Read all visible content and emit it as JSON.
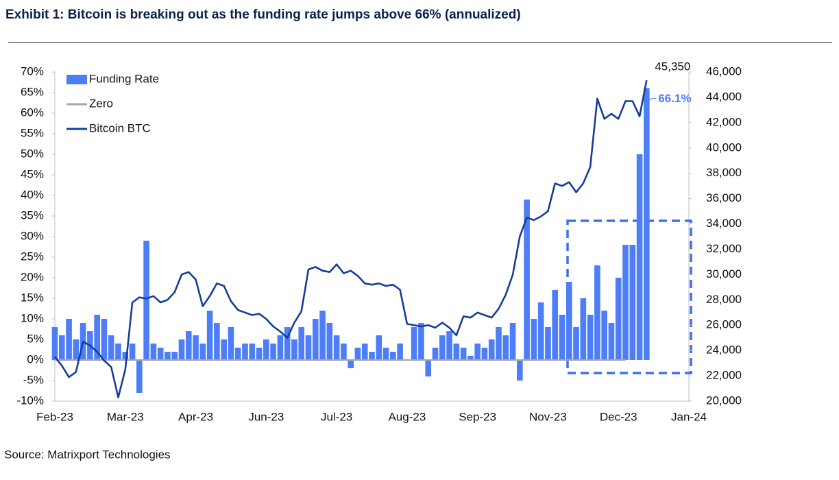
{
  "chart_data": {
    "type": "bar-line",
    "title": "Exhibit 1: Bitcoin is breaking out as the funding rate jumps above 66% (annualized)",
    "source": "Source: Matrixport Technologies",
    "categories": [
      "Feb-23",
      null,
      null,
      null,
      null,
      null,
      null,
      null,
      null,
      null,
      "Mar-23",
      null,
      null,
      null,
      null,
      null,
      null,
      null,
      null,
      null,
      "Apr-23",
      null,
      null,
      null,
      null,
      null,
      null,
      null,
      null,
      null,
      "Jun-23",
      null,
      null,
      null,
      null,
      null,
      null,
      null,
      null,
      null,
      "Jul-23",
      null,
      null,
      null,
      null,
      null,
      null,
      null,
      null,
      null,
      "Aug-23",
      null,
      null,
      null,
      null,
      null,
      null,
      null,
      null,
      null,
      "Sep-23",
      null,
      null,
      null,
      null,
      null,
      null,
      null,
      null,
      null,
      "Nov-23",
      null,
      null,
      null,
      null,
      null,
      null,
      null,
      null,
      null,
      "Dec-23",
      null,
      null,
      null,
      null,
      null,
      null,
      null,
      null,
      null,
      "Jan-24"
    ],
    "series": [
      {
        "name": "Funding Rate",
        "type": "bar",
        "axis": "y",
        "color": "#4d7ef7",
        "values": [
          8,
          6,
          10,
          5,
          9,
          7,
          11,
          10,
          6,
          4,
          2,
          4,
          -8,
          29,
          4,
          3,
          2,
          2,
          5,
          7,
          6,
          4,
          12,
          9,
          5,
          8,
          3,
          4,
          4,
          3,
          5,
          4,
          6,
          8,
          5,
          8,
          6,
          10,
          12,
          9,
          6,
          4,
          -2,
          3,
          4,
          2,
          6,
          3,
          2,
          4,
          0,
          8,
          9,
          -4,
          3,
          6,
          7,
          4,
          3,
          1,
          4,
          3,
          5,
          8,
          6,
          9,
          -5,
          39,
          10,
          14,
          8,
          17,
          11,
          19,
          8,
          15,
          11,
          23,
          12,
          9,
          20,
          28,
          28,
          50,
          66.1,
          null,
          null,
          null,
          null,
          null,
          null
        ],
        "value_labels": [
          null,
          null,
          null,
          null,
          null,
          null,
          null,
          null,
          null,
          null,
          null,
          null,
          null,
          null,
          null,
          null,
          null,
          null,
          null,
          null,
          null,
          null,
          null,
          null,
          null,
          null,
          null,
          null,
          null,
          null,
          null,
          null,
          null,
          null,
          null,
          null,
          null,
          null,
          null,
          null,
          null,
          null,
          null,
          null,
          null,
          null,
          null,
          null,
          null,
          null,
          null,
          null,
          null,
          null,
          null,
          null,
          null,
          null,
          null,
          null,
          null,
          null,
          null,
          null,
          null,
          null,
          null,
          null,
          null,
          null,
          null,
          null,
          null,
          null,
          null,
          null,
          null,
          null,
          null,
          null,
          null,
          null,
          null,
          null,
          "66.1%",
          null,
          null,
          null,
          null,
          null,
          null
        ]
      },
      {
        "name": "Zero",
        "type": "line",
        "axis": "y",
        "color": "#a6a6a6",
        "values": [
          0,
          0,
          0,
          0,
          0,
          0,
          0,
          0,
          0,
          0,
          0,
          0,
          0,
          0,
          0,
          0,
          0,
          0,
          0,
          0,
          0,
          0,
          0,
          0,
          0,
          0,
          0,
          0,
          0,
          0,
          0,
          0,
          0,
          0,
          0,
          0,
          0,
          0,
          0,
          0,
          0,
          0,
          0,
          0,
          0,
          0,
          0,
          0,
          0,
          0,
          0,
          0,
          0,
          0,
          0,
          0,
          0,
          0,
          0,
          0,
          0,
          0,
          0,
          0,
          0,
          0,
          0,
          0,
          0,
          0,
          0,
          0,
          0,
          0,
          0,
          0,
          0,
          0,
          0,
          0,
          0,
          0,
          null,
          null,
          null,
          null,
          null,
          null,
          null,
          null,
          null
        ]
      },
      {
        "name": "Bitcoin BTC",
        "type": "line",
        "axis": "y2",
        "color": "#143d9c",
        "values": [
          23500,
          22800,
          21900,
          22300,
          24700,
          24400,
          23900,
          23200,
          22700,
          20300,
          22500,
          27800,
          28200,
          28100,
          28300,
          27800,
          28000,
          28600,
          30000,
          30200,
          29600,
          27500,
          28300,
          29300,
          29100,
          27900,
          27200,
          27000,
          26800,
          26900,
          26500,
          25900,
          25500,
          25000,
          26200,
          27100,
          30400,
          30600,
          30300,
          30200,
          30800,
          30100,
          30300,
          29900,
          29300,
          29200,
          29300,
          29100,
          29200,
          28800,
          26100,
          26000,
          25900,
          26000,
          25800,
          26200,
          25800,
          25200,
          26700,
          26600,
          27000,
          26800,
          26600,
          27300,
          28400,
          30000,
          33000,
          34500,
          34300,
          34600,
          35000,
          37200,
          37000,
          37300,
          36500,
          37200,
          38500,
          43900,
          42300,
          42700,
          42300,
          43700,
          43700,
          42500,
          45350,
          null,
          null,
          null,
          null,
          null,
          null
        ],
        "value_labels": [
          null,
          null,
          null,
          null,
          null,
          null,
          null,
          null,
          null,
          null,
          null,
          null,
          null,
          null,
          null,
          null,
          null,
          null,
          null,
          null,
          null,
          null,
          null,
          null,
          null,
          null,
          null,
          null,
          null,
          null,
          null,
          null,
          null,
          null,
          null,
          null,
          null,
          null,
          null,
          null,
          null,
          null,
          null,
          null,
          null,
          null,
          null,
          null,
          null,
          null,
          null,
          null,
          null,
          null,
          null,
          null,
          null,
          null,
          null,
          null,
          null,
          null,
          null,
          null,
          null,
          null,
          null,
          null,
          null,
          null,
          null,
          null,
          null,
          null,
          null,
          null,
          null,
          null,
          null,
          null,
          null,
          null,
          null,
          null,
          "45,350",
          null,
          null,
          null,
          null,
          null,
          null
        ]
      }
    ],
    "ylim": [
      -10,
      70
    ],
    "yticks": [
      {
        "value": -10,
        "label": "-10%"
      },
      {
        "value": -5,
        "label": "-5%"
      },
      {
        "value": 0,
        "label": "0%"
      },
      {
        "value": 5,
        "label": "5%"
      },
      {
        "value": 10,
        "label": "10%"
      },
      {
        "value": 15,
        "label": "15%"
      },
      {
        "value": 20,
        "label": "20%"
      },
      {
        "value": 25,
        "label": "25%"
      },
      {
        "value": 30,
        "label": "30%"
      },
      {
        "value": 35,
        "label": "35%"
      },
      {
        "value": 40,
        "label": "40%"
      },
      {
        "value": 45,
        "label": "45%"
      },
      {
        "value": 50,
        "label": "50%"
      },
      {
        "value": 55,
        "label": "55%"
      },
      {
        "value": 60,
        "label": "60%"
      },
      {
        "value": 65,
        "label": "65%"
      },
      {
        "value": 70,
        "label": "70%"
      }
    ],
    "y2lim": [
      20000,
      46000
    ],
    "y2ticks": [
      {
        "value": 20000,
        "label": "20,000"
      },
      {
        "value": 22000,
        "label": "22,000"
      },
      {
        "value": 24000,
        "label": "24,000"
      },
      {
        "value": 26000,
        "label": "26,000"
      },
      {
        "value": 28000,
        "label": "28,000"
      },
      {
        "value": 30000,
        "label": "30,000"
      },
      {
        "value": 32000,
        "label": "32,000"
      },
      {
        "value": 34000,
        "label": "34,000"
      },
      {
        "value": 36000,
        "label": "36,000"
      },
      {
        "value": 38000,
        "label": "38,000"
      },
      {
        "value": 40000,
        "label": "40,000"
      },
      {
        "value": 42000,
        "label": "42,000"
      },
      {
        "value": 44000,
        "label": "44,000"
      },
      {
        "value": 46000,
        "label": "46,000"
      }
    ],
    "legend": "top-left",
    "grid": false
  }
}
